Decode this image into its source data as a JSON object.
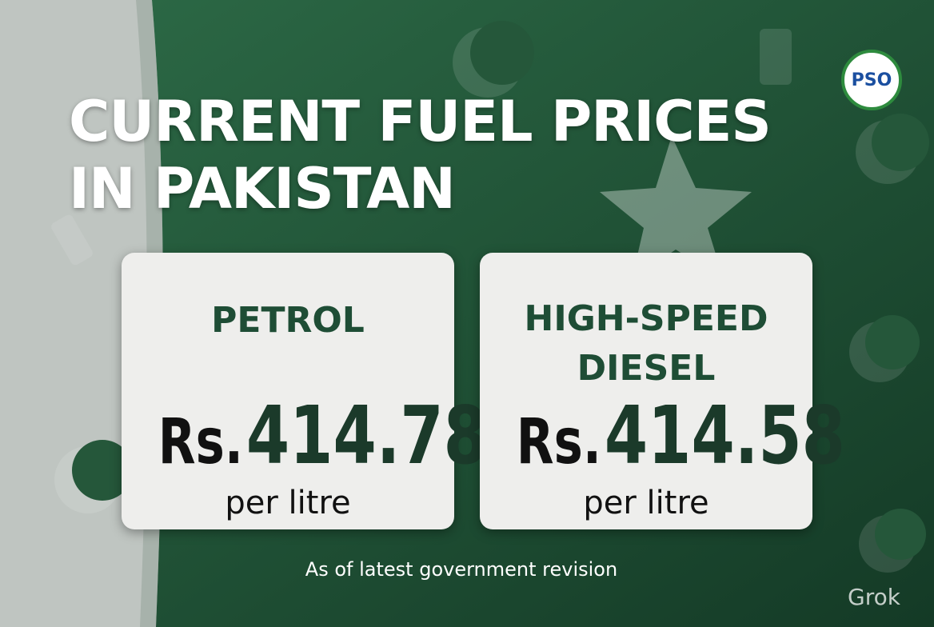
{
  "logo": {
    "text": "PSO"
  },
  "header": {
    "title_lines": [
      "CURRENT FUEL PRICES",
      "IN PAKISTAN"
    ]
  },
  "cards": [
    {
      "fuel_lines": [
        "PETROL"
      ],
      "currency": "Rs.",
      "price": 414.78,
      "unit": "per litre"
    },
    {
      "fuel_lines": [
        "HIGH-SPEED",
        "DIESEL"
      ],
      "currency": "Rs.",
      "price": 414.58,
      "unit": "per litre"
    }
  ],
  "footer": {
    "note": "As of latest government revision"
  },
  "watermark": {
    "text": "Grok"
  }
}
